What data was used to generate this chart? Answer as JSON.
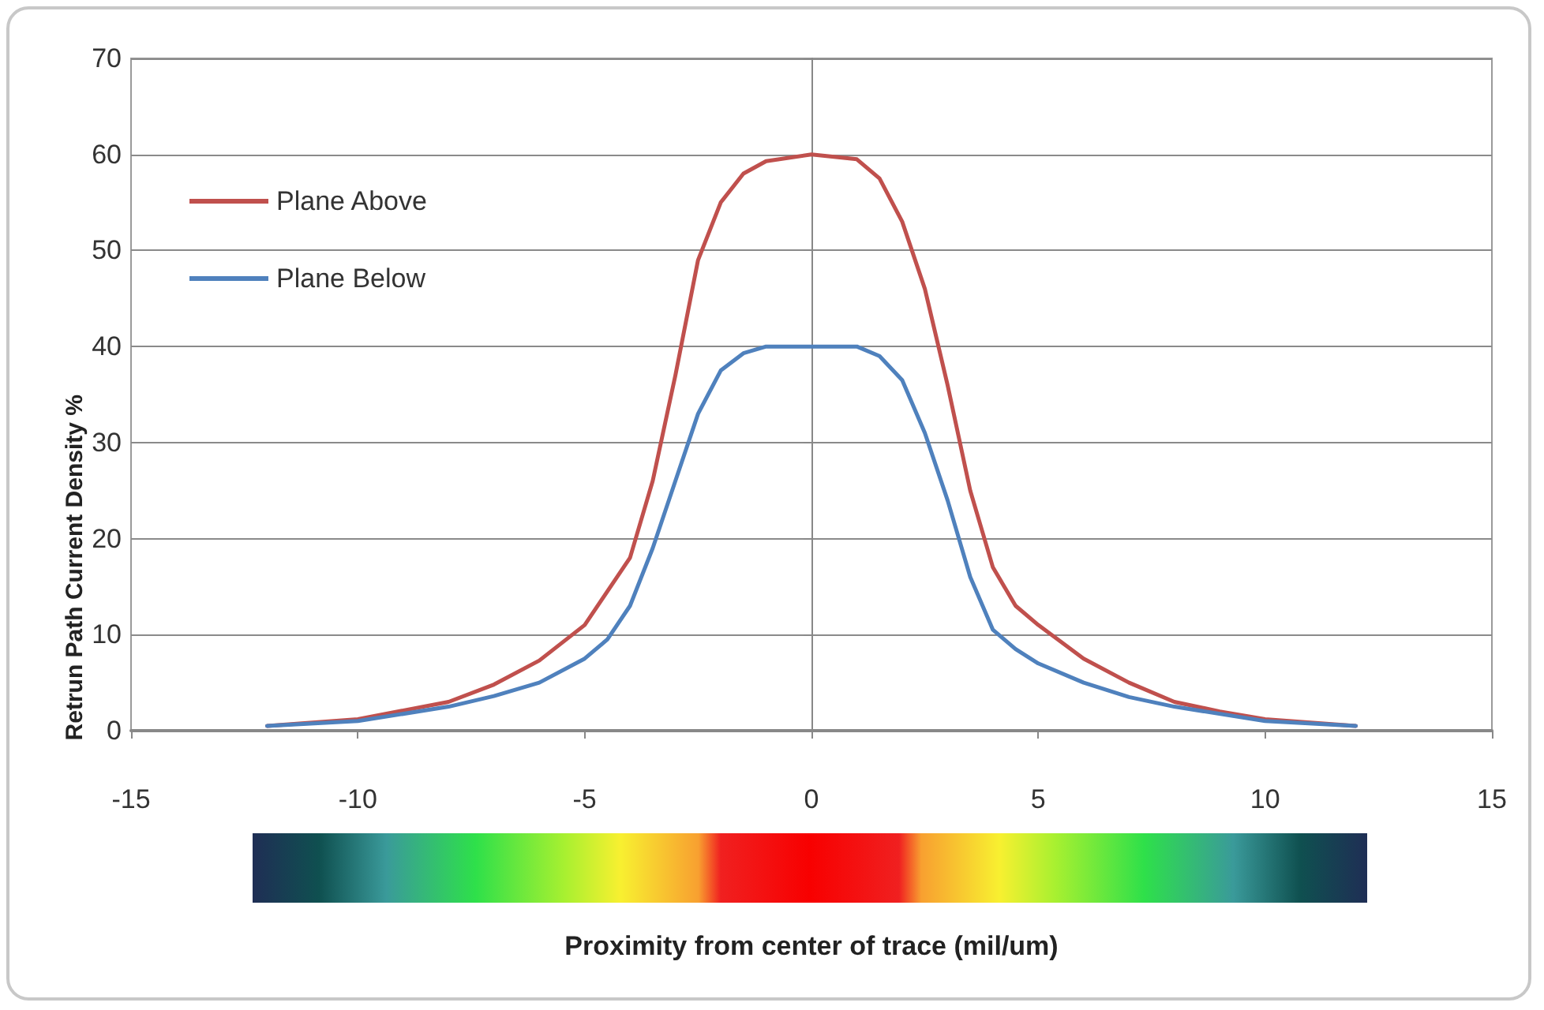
{
  "chart_data": {
    "type": "line",
    "xlabel": "Proximity from center of trace (mil/um)",
    "ylabel": "Retrun Path Current Density %",
    "xlim": [
      -15,
      15
    ],
    "xticks": [
      -15,
      -10,
      -5,
      0,
      5,
      10,
      15
    ],
    "ylim": [
      0,
      70
    ],
    "yticks": [
      0,
      10,
      20,
      30,
      40,
      50,
      60,
      70
    ],
    "grid": "y",
    "legend": "top left",
    "marker": "none",
    "line_style": "solid",
    "series": [
      {
        "name": "Plane Above",
        "color": "#c0504d",
        "x": [
          -12,
          -10,
          -8,
          -7,
          -6,
          -5,
          -4,
          -3.5,
          -3,
          -2.5,
          -2,
          -1.5,
          -1,
          0,
          1,
          1.5,
          2,
          2.5,
          3,
          3.5,
          4,
          4.5,
          5,
          6,
          7,
          8,
          9,
          10,
          12
        ],
        "values": [
          0.5,
          1.2,
          3,
          4.8,
          7.3,
          11,
          18,
          26,
          37,
          49,
          55,
          58,
          59.3,
          60,
          59.5,
          57.5,
          53,
          46,
          36,
          25,
          17,
          13,
          11,
          7.5,
          5,
          3,
          2,
          1.2,
          0.5
        ]
      },
      {
        "name": "Plane Below",
        "color": "#4f81bd",
        "x": [
          -12,
          -10,
          -8,
          -7,
          -6,
          -5,
          -4.5,
          -4,
          -3.5,
          -3,
          -2.5,
          -2,
          -1.5,
          -1,
          0,
          1,
          1.5,
          2,
          2.5,
          3,
          3.5,
          4,
          4.5,
          5,
          6,
          7,
          8,
          10,
          12
        ],
        "values": [
          0.5,
          1,
          2.5,
          3.6,
          5,
          7.5,
          9.5,
          13,
          19,
          26,
          33,
          37.5,
          39.3,
          40,
          40,
          40,
          39,
          36.5,
          31,
          24,
          16,
          10.5,
          8.5,
          7,
          5,
          3.5,
          2.5,
          1,
          0.5
        ]
      }
    ]
  }
}
